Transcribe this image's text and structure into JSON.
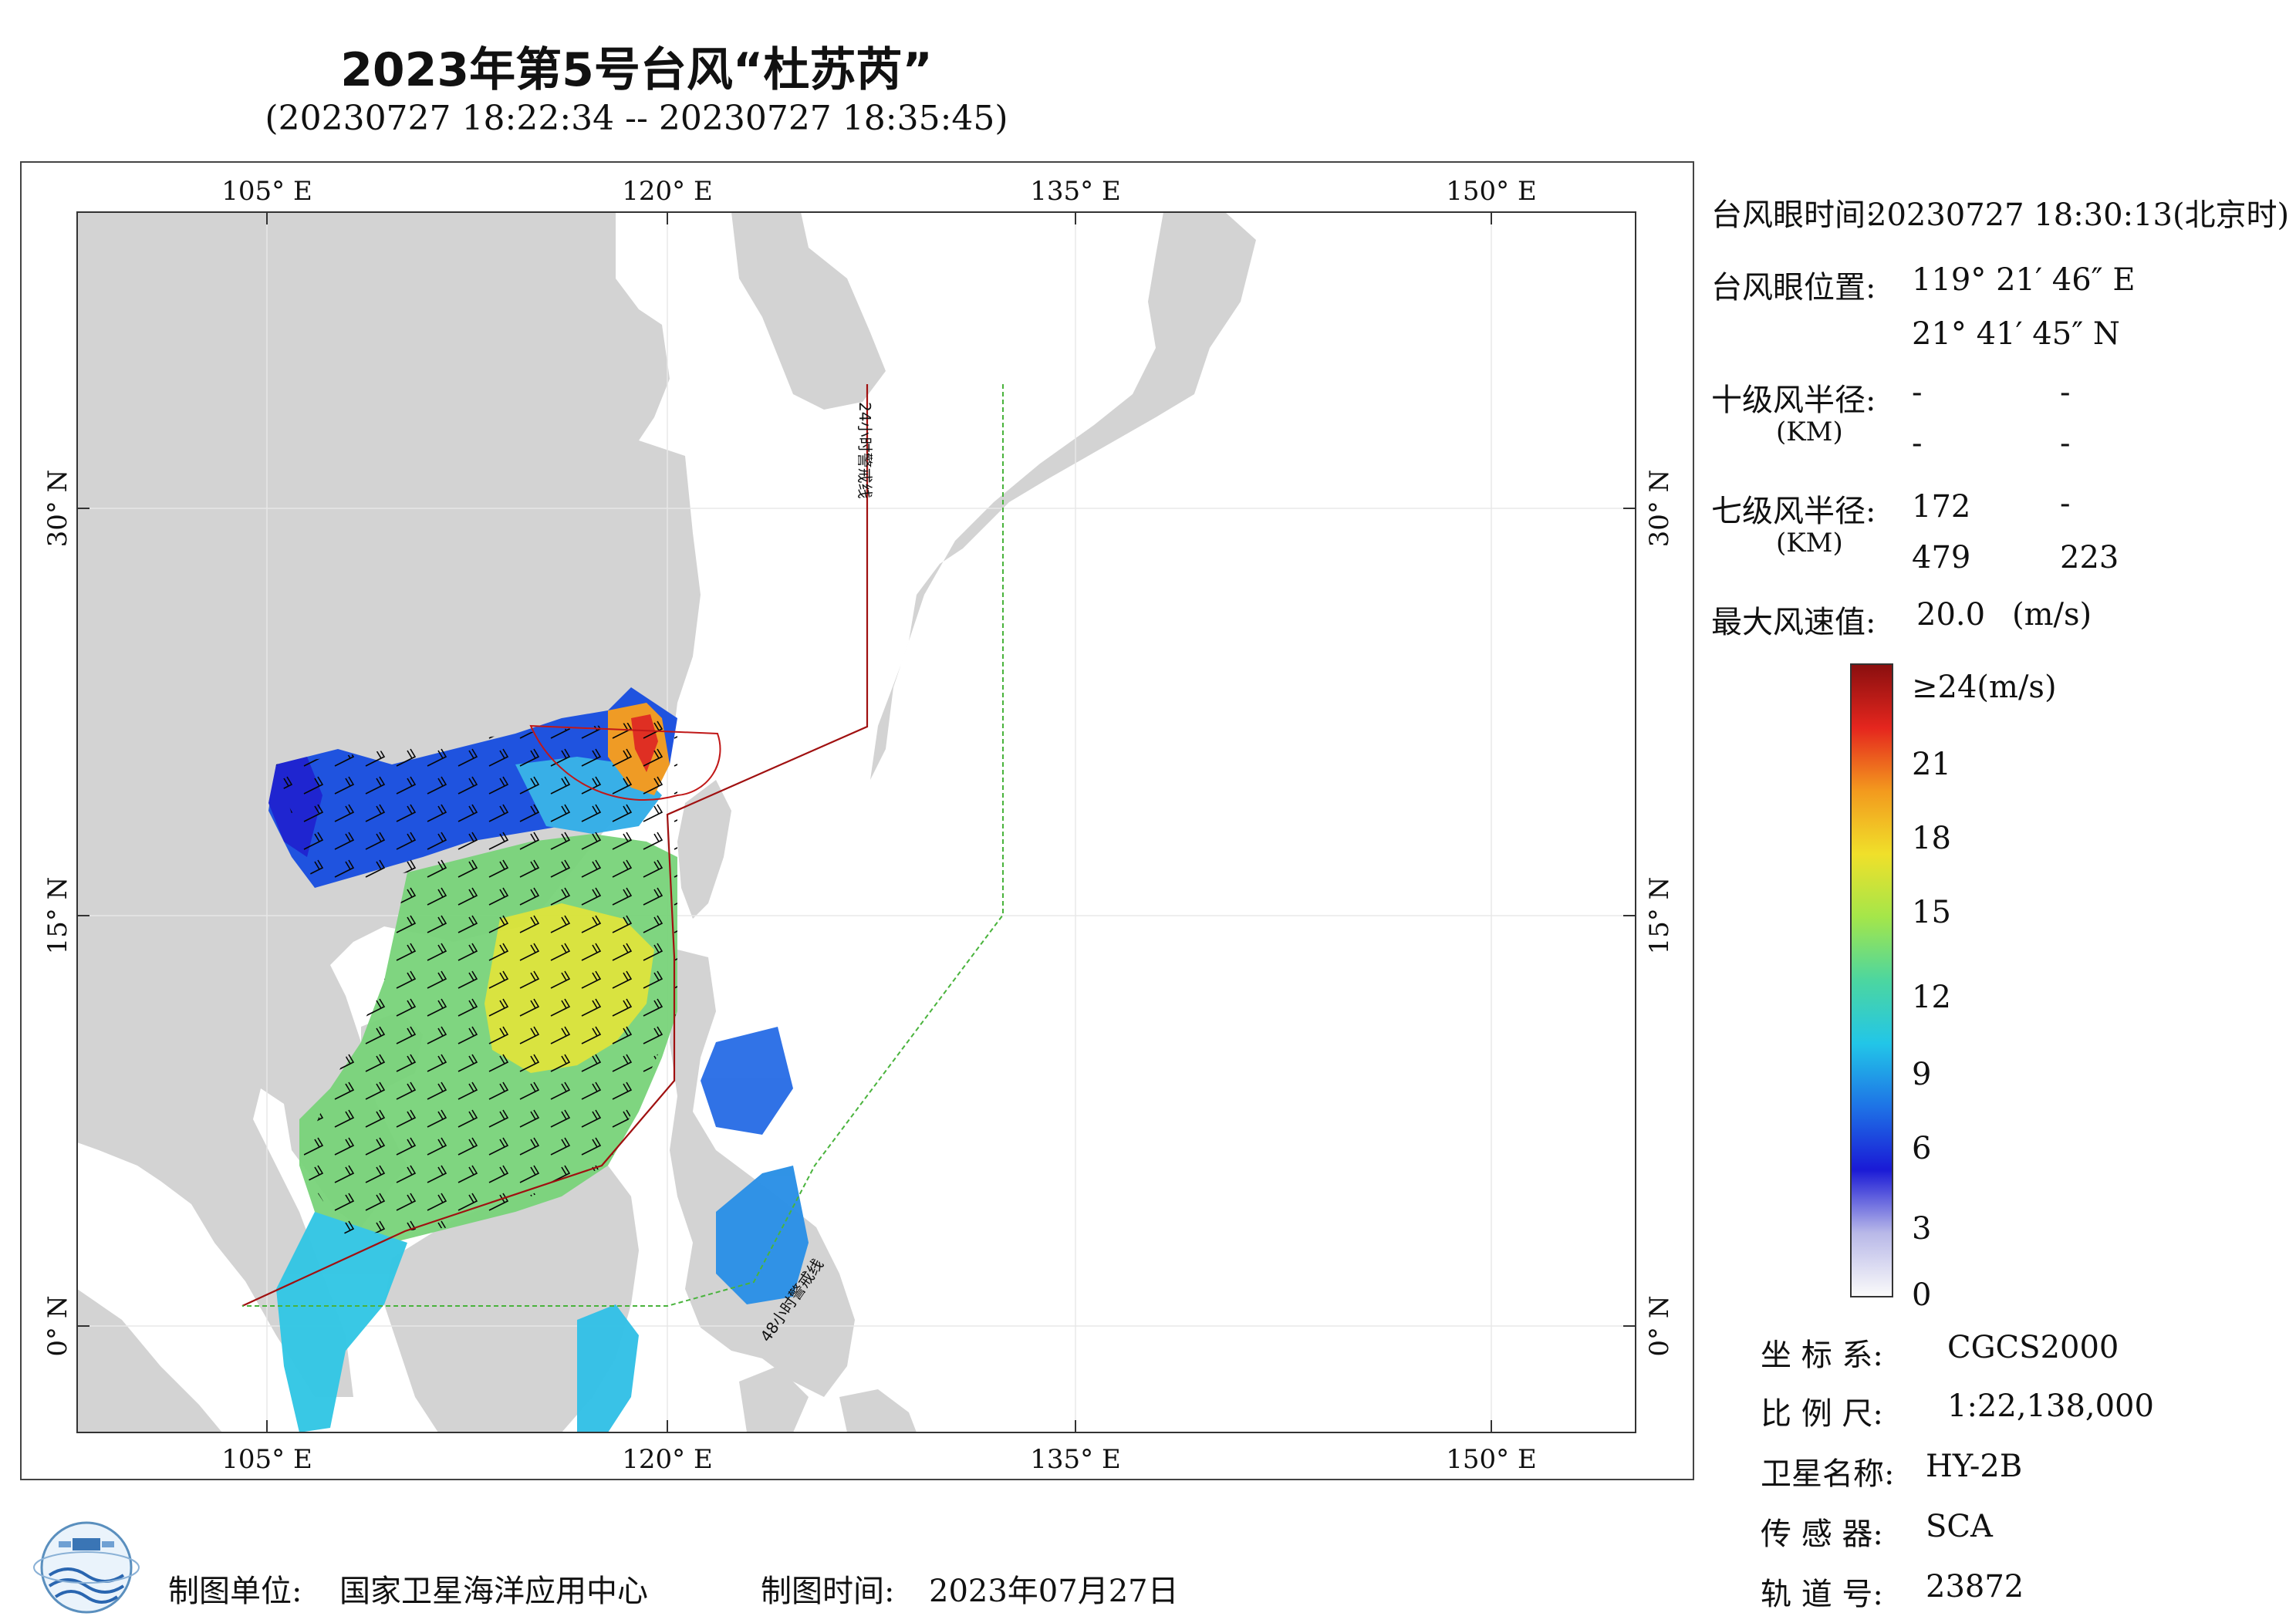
{
  "header": {
    "title": "2023年第5号台风“杜苏芮”",
    "subtitle": "(20230727 18:22:34 -- 20230727 18:35:45)"
  },
  "map": {
    "lon_ticks": [
      "105° E",
      "120° E",
      "135° E",
      "150° E"
    ],
    "lat_ticks": [
      "30° N",
      "15° N",
      "0° N"
    ],
    "warning_24h_label": "24小时警戒线",
    "warning_48h_label": "48小时警戒线",
    "colors": {
      "land": "#d3d3d3",
      "ocean": "#ffffff",
      "warning_24h": "#a01010",
      "warning_48h": "#49b33c"
    }
  },
  "info": {
    "eye_time_label": "台风眼时间:",
    "eye_time_value": "20230727 18:30:13(北京时)",
    "eye_pos_label": "台风眼位置:",
    "eye_lon": "119° 21′ 46″ E",
    "eye_lat": "21° 41′ 45″ N",
    "r10_label": "十级风半径:",
    "km": "(KM)",
    "r10_values": [
      "-",
      "-",
      "-",
      "-"
    ],
    "r7_label": "七级风半径:",
    "r7_values": [
      "172",
      "-",
      "479",
      "223"
    ],
    "max_wind_label": "最大风速值:",
    "max_wind_value": "20.0",
    "max_wind_unit": "(m/s)"
  },
  "colorbar": {
    "labels": [
      "≥24(m/s)",
      "21",
      "18",
      "15",
      "12",
      "9",
      "6",
      "3",
      "0"
    ],
    "stops": [
      "#fafafa",
      "#b8b8e8",
      "#1a1ad6",
      "#1e73e6",
      "#22c6e8",
      "#4cd6a0",
      "#a4e64a",
      "#f0e02a",
      "#f39a1e",
      "#e5261e",
      "#8a0f0f"
    ]
  },
  "meta": {
    "crs_label": "坐 标 系:",
    "crs_value": "CGCS2000",
    "scale_label": "比 例 尺:",
    "scale_value": "1:22,138,000",
    "satellite_label": "卫星名称:",
    "satellite_value": "HY-2B",
    "sensor_label": "传 感 器:",
    "sensor_value": "SCA",
    "orbit_label": "轨 道 号:",
    "orbit_value": "23872"
  },
  "footer": {
    "org_label": "制图单位:",
    "org_value": "国家卫星海洋应用中心",
    "date_label": "制图时间:",
    "date_value": "2023年07月27日"
  }
}
